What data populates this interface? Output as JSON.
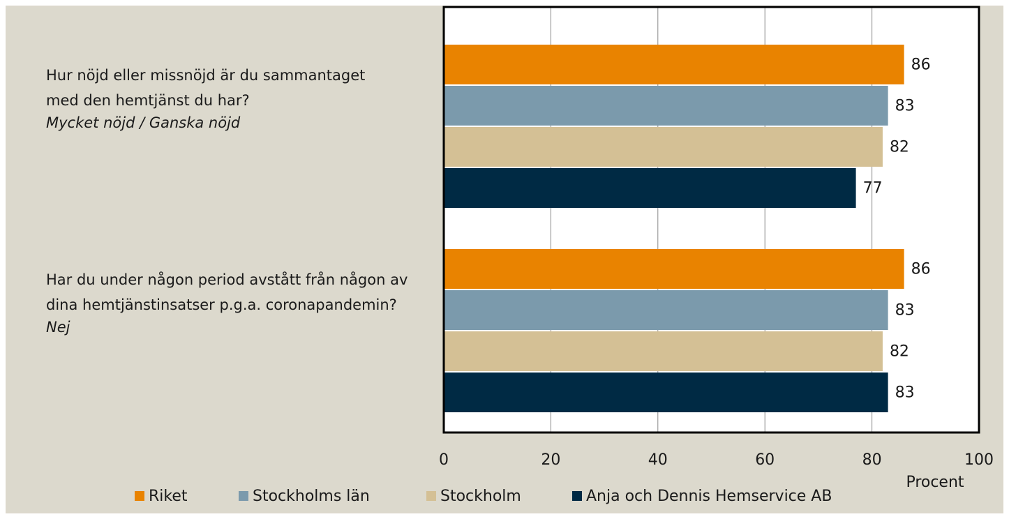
{
  "chart_data": {
    "type": "barh",
    "categories": [
      "Hur nöjd eller missnöjd är du sammantaget med den hemtjänst du har?",
      "Har du under någon period avstått från någon av dina hemtjänstinsatser p.g.a. coronapandemin?"
    ],
    "category_notes": [
      "Mycket nöjd / Ganska nöjd",
      "Nej"
    ],
    "series": [
      {
        "name": "Riket",
        "color": "#e98300",
        "values": [
          86,
          86
        ]
      },
      {
        "name": "Stockholms län",
        "color": "#7b9aac",
        "values": [
          83,
          83
        ]
      },
      {
        "name": "Stockholm",
        "color": "#d4c095",
        "values": [
          82,
          82
        ]
      },
      {
        "name": "Anja och Dennis Hemservice AB",
        "color": "#002a44",
        "values": [
          77,
          83
        ]
      }
    ],
    "xlim": [
      0,
      100
    ],
    "xticks": [
      0,
      20,
      40,
      60,
      80,
      100
    ],
    "xlabel": "Procent",
    "grid": true
  }
}
